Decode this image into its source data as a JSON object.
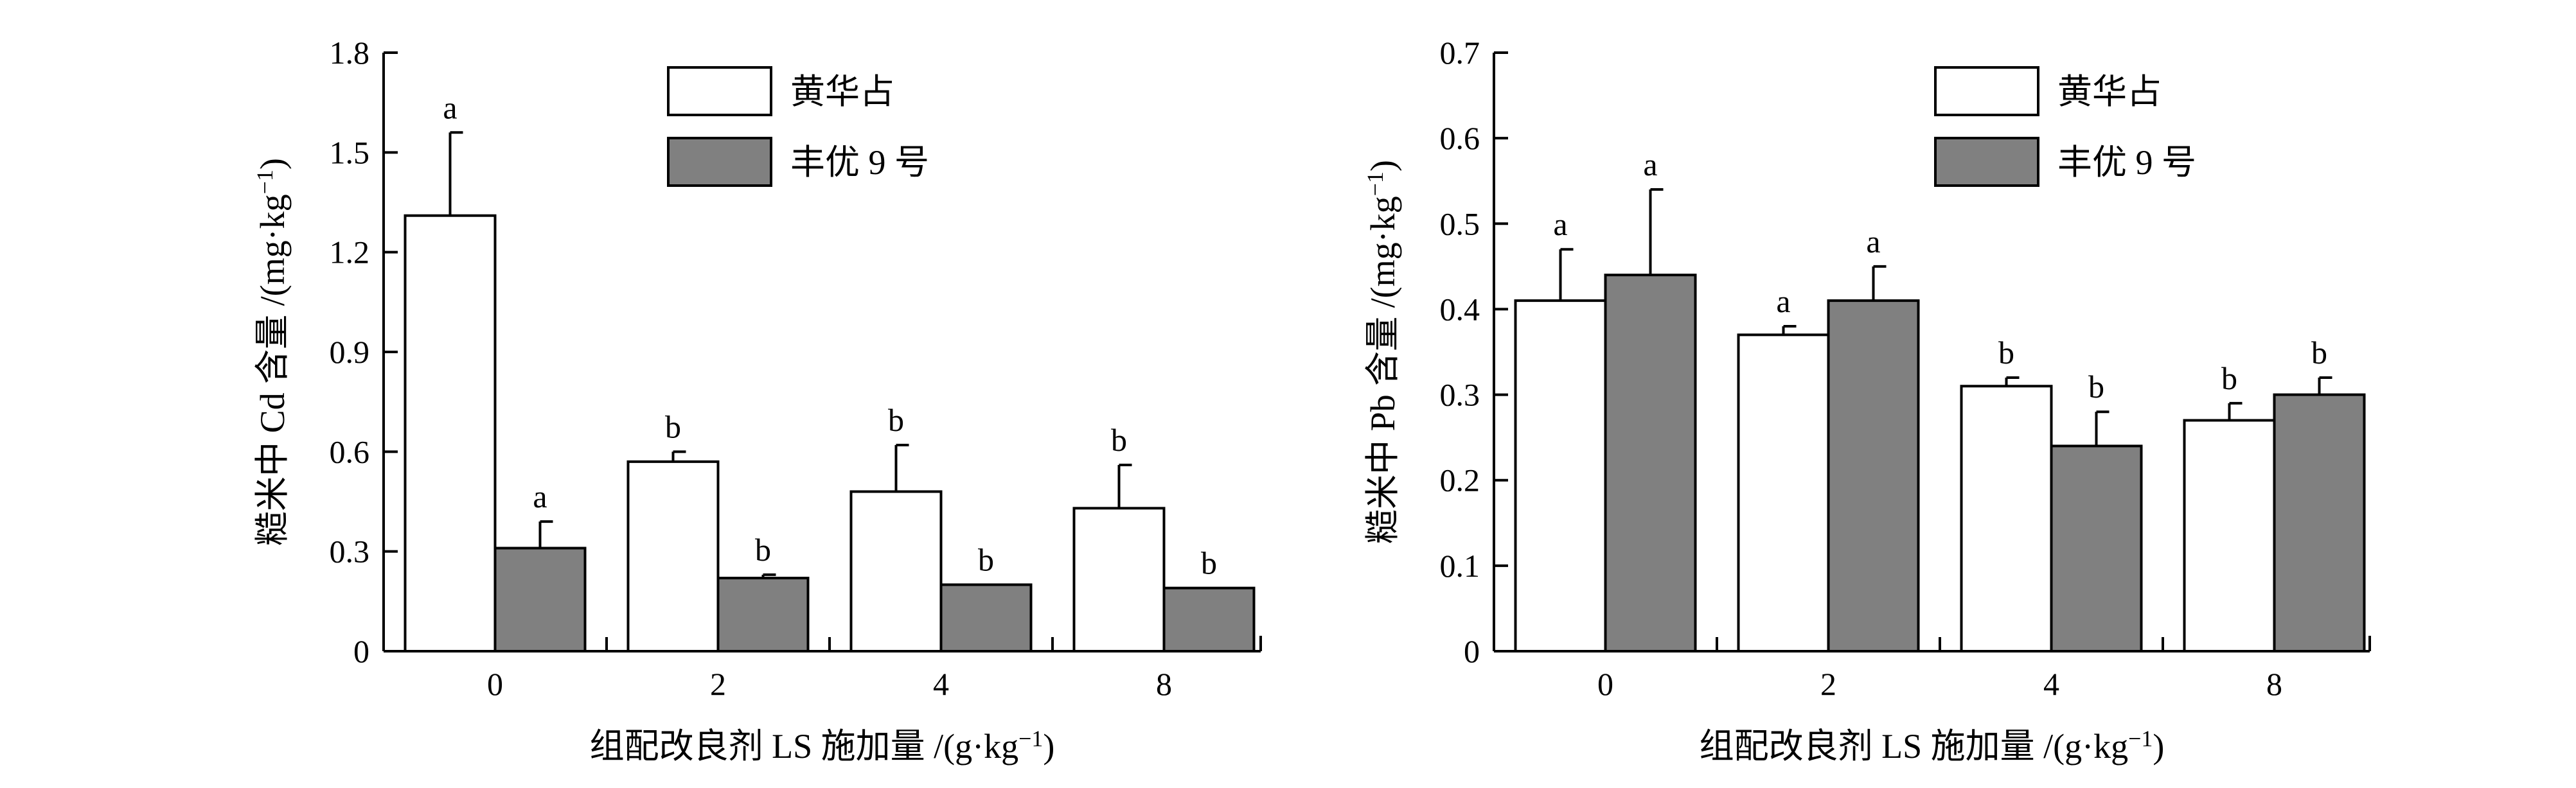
{
  "chart_data": [
    {
      "type": "bar",
      "title": "",
      "xlabel": "组配改良剂 LS 施加量 /(g·kg⁻¹)",
      "ylabel": "糙米中 Cd 含量 /(mg·kg⁻¹)",
      "ylim": [
        0,
        1.8
      ],
      "yticks": [
        0,
        0.3,
        0.6,
        0.9,
        1.2,
        1.5,
        1.8
      ],
      "ytick_labels": [
        "0",
        "0.3",
        "0.6",
        "0.9",
        "1.2",
        "1.5",
        "1.8"
      ],
      "categories": [
        "0",
        "2",
        "4",
        "8"
      ],
      "legend_position": "top-center",
      "series": [
        {
          "name": "黄华占",
          "color": "#ffffff",
          "values": [
            1.31,
            0.57,
            0.48,
            0.43
          ],
          "errors": [
            0.25,
            0.03,
            0.14,
            0.13
          ],
          "labels": [
            "a",
            "b",
            "b",
            "b"
          ]
        },
        {
          "name": "丰优 9 号",
          "color": "#808080",
          "values": [
            0.31,
            0.22,
            0.2,
            0.19
          ],
          "errors": [
            0.08,
            0.01,
            0.0,
            0.0
          ],
          "labels": [
            "a",
            "b",
            "b",
            "b"
          ]
        }
      ]
    },
    {
      "type": "bar",
      "title": "",
      "xlabel": "组配改良剂 LS 施加量 /(g·kg⁻¹)",
      "ylabel": "糙米中 Pb 含量 /(mg·kg⁻¹)",
      "ylim": [
        0,
        0.7
      ],
      "yticks": [
        0,
        0.1,
        0.2,
        0.3,
        0.4,
        0.5,
        0.6,
        0.7
      ],
      "ytick_labels": [
        "0",
        "0.1",
        "0.2",
        "0.3",
        "0.4",
        "0.5",
        "0.6",
        "0.7"
      ],
      "categories": [
        "0",
        "2",
        "4",
        "8"
      ],
      "legend_position": "top-center",
      "series": [
        {
          "name": "黄华占",
          "color": "#ffffff",
          "values": [
            0.41,
            0.37,
            0.31,
            0.27
          ],
          "errors": [
            0.06,
            0.01,
            0.01,
            0.02
          ],
          "labels": [
            "a",
            "a",
            "b",
            "b"
          ]
        },
        {
          "name": "丰优 9 号",
          "color": "#808080",
          "values": [
            0.44,
            0.41,
            0.24,
            0.3
          ],
          "errors": [
            0.1,
            0.04,
            0.04,
            0.02
          ],
          "labels": [
            "a",
            "a",
            "b",
            "b"
          ]
        }
      ]
    }
  ]
}
